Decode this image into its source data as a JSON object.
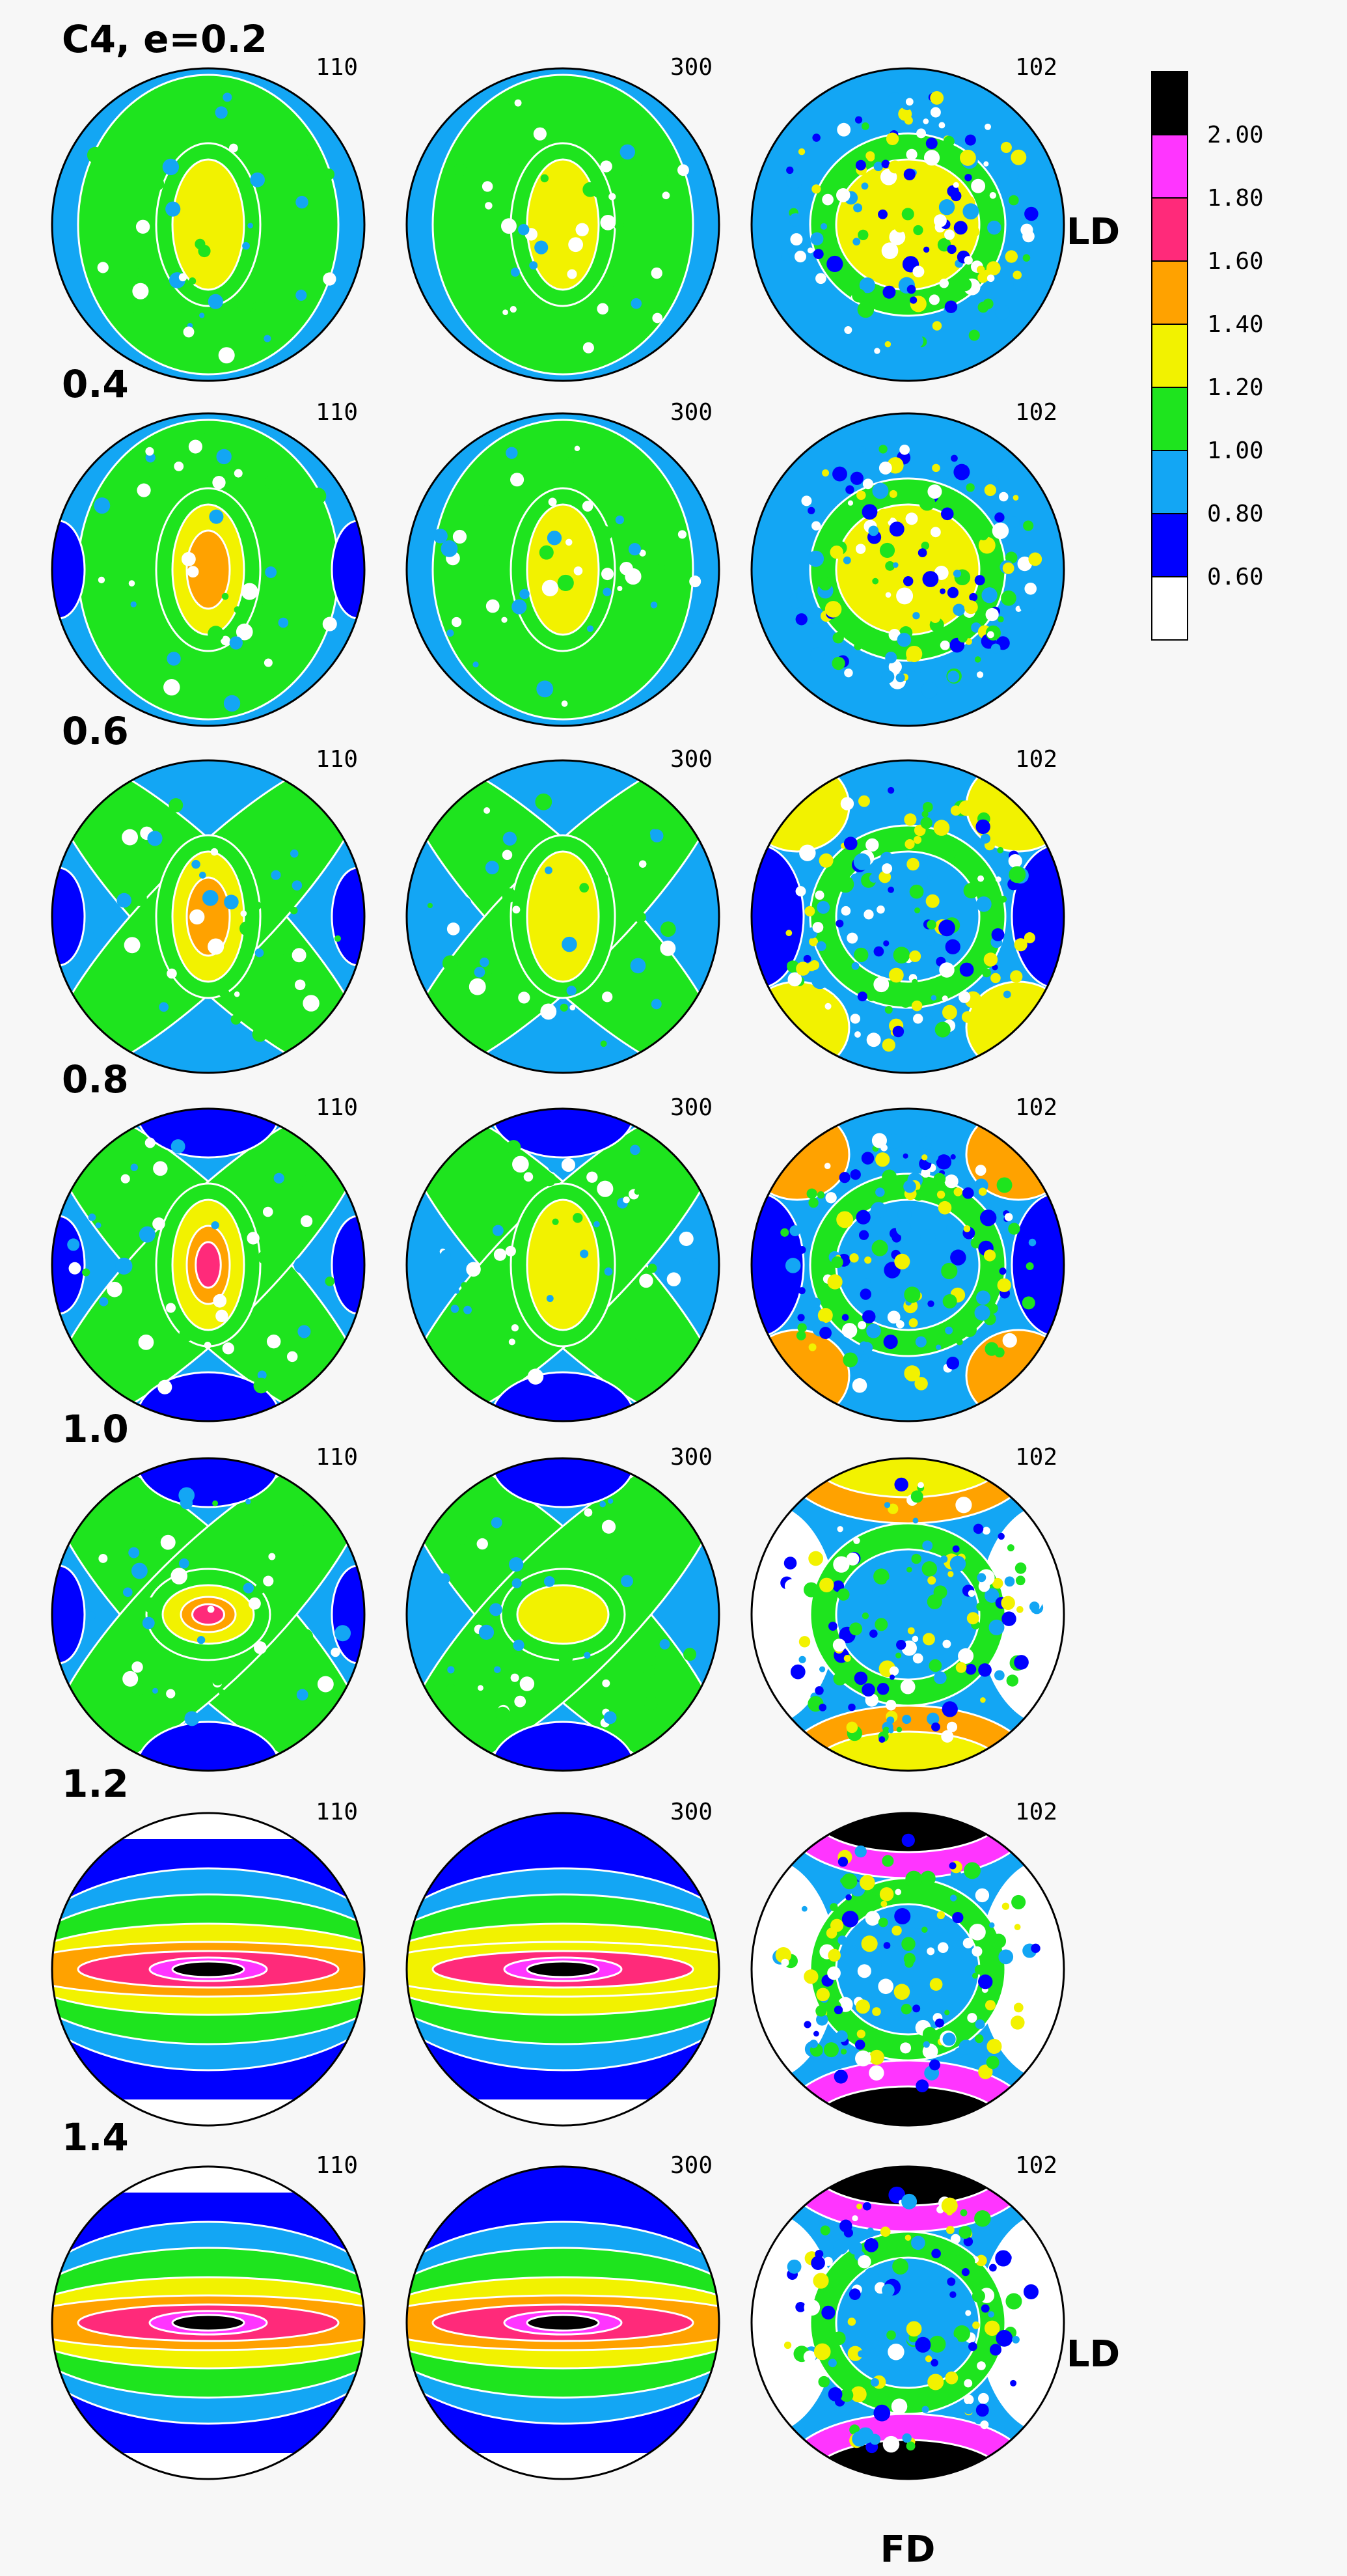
{
  "figure": {
    "rows": [
      {
        "label": "C4, e=0.2",
        "strain": 0.2,
        "stage": 1
      },
      {
        "label": "0.4",
        "strain": 0.4,
        "stage": 2
      },
      {
        "label": "0.6",
        "strain": 0.6,
        "stage": 3
      },
      {
        "label": "0.8",
        "strain": 0.8,
        "stage": 4
      },
      {
        "label": "1.0",
        "strain": 1.0,
        "stage": 5
      },
      {
        "label": "1.2",
        "strain": 1.2,
        "stage": 6
      },
      {
        "label": "1.4",
        "strain": 1.4,
        "stage": 7
      }
    ],
    "planes": [
      {
        "label": "110",
        "kind": "a"
      },
      {
        "label": "300",
        "kind": "b"
      },
      {
        "label": "102",
        "kind": "c"
      }
    ],
    "axis_labels": {
      "ld_top": "LD",
      "ld_bottom": "LD",
      "fd": "FD"
    }
  },
  "legend": {
    "levels": [
      {
        "label": "2.00",
        "color": "#000000"
      },
      {
        "label": "1.80",
        "color": "#ff35ff"
      },
      {
        "label": "1.60",
        "color": "#ff2a7a"
      },
      {
        "label": "1.40",
        "color": "#ffa200"
      },
      {
        "label": "1.20",
        "color": "#f2f200"
      },
      {
        "label": "1.00",
        "color": "#1ee41e"
      },
      {
        "label": "0.80",
        "color": "#13a6f4"
      },
      {
        "label": "0.60",
        "color": "#0000ff"
      },
      {
        "label": "",
        "color": "#ffffff"
      }
    ]
  }
}
